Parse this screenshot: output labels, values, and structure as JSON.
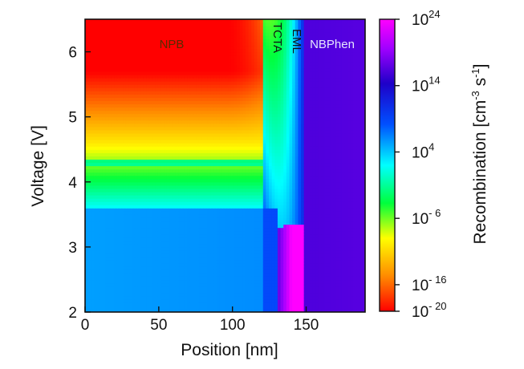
{
  "chart_data": {
    "type": "heatmap",
    "title": "",
    "xlabel": "Position [nm]",
    "ylabel": "Voltage [V]",
    "xlim": [
      0,
      190
    ],
    "ylim": [
      2,
      6.5
    ],
    "x_ticks": [
      0,
      50,
      100,
      150
    ],
    "x_tick_labels": [
      "0",
      "50",
      "100",
      "150"
    ],
    "y_ticks": [
      2,
      3,
      4,
      5,
      6
    ],
    "y_tick_labels": [
      "2",
      "3",
      "4",
      "5",
      "6"
    ],
    "grid": false,
    "colorbar": {
      "label": "Recombination [cm⁻³ s⁻¹]",
      "label_base": "Recombination [cm",
      "label_exp1": "-3",
      "label_mid": " s",
      "label_exp2": "-1",
      "label_end": "]",
      "scale": "log",
      "range_exp": [
        -20,
        24
      ],
      "ticks": [
        {
          "base": "10",
          "exp": "24",
          "value": 24
        },
        {
          "base": "10",
          "exp": "14",
          "value": 14
        },
        {
          "base": "10",
          "exp": "4",
          "value": 4
        },
        {
          "base": "10",
          "exp": "- 6",
          "value": -6
        },
        {
          "base": "10",
          "exp": "- 16",
          "value": -16
        },
        {
          "base": "10",
          "exp": "- 20",
          "value": -20
        }
      ],
      "colors": [
        "#ff0000",
        "#ff8a00",
        "#ffff00",
        "#00ff3c",
        "#00ffff",
        "#0050ff",
        "#1e00c8",
        "#a000ff",
        "#ff00ff"
      ]
    },
    "layers": [
      {
        "label": "NPB",
        "x_start": 0,
        "x_end": 121,
        "label_color": "#5a2a00"
      },
      {
        "label": "TCTA",
        "x_start": 121,
        "x_end": 131,
        "label_color": "#111111"
      },
      {
        "label": "EML",
        "x_start": 131,
        "x_end": 148,
        "label_color": "#111111"
      },
      {
        "label": "NBPhen",
        "x_start": 148,
        "x_end": 190,
        "label_color": "#e6e6ff"
      }
    ],
    "features": {
      "npb_band_voltage": 4.3,
      "npb_drop_voltage": 3.6,
      "eml_knee_voltage": 3.3,
      "npb_top_exp": -20,
      "npb_mid_exp": -10,
      "npb_low_exp": 5,
      "nbphen_exp": 15
    }
  }
}
